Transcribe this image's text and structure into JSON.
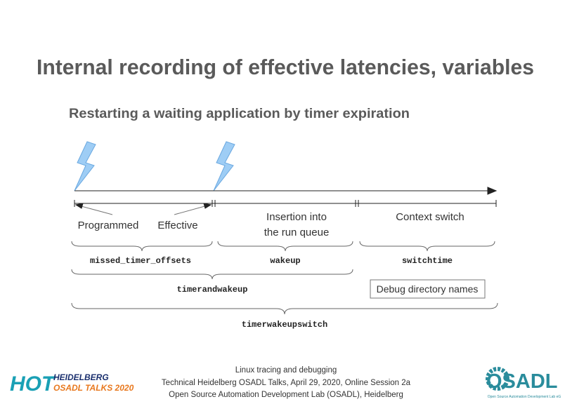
{
  "title": "Internal recording of effective latencies, variables",
  "subtitle": "Restarting a waiting application by timer expiration",
  "events": {
    "programmed": "Programmed",
    "effective": "Effective",
    "insertion": [
      "Insertion into",
      "the run queue"
    ],
    "context_switch": "Context switch"
  },
  "variables": {
    "missed_timer_offsets": "missed_timer_offsets",
    "wakeup": "wakeup",
    "switchtime": "switchtime",
    "timerandwakeup": "timerandwakeup",
    "timerwakeupswitch": "timerwakeupswitch"
  },
  "legend": "Debug directory names",
  "footer": [
    "Linux tracing and debugging",
    "Technical Heidelberg OSADL Talks, April 29, 2020, Online Session 2a",
    "Open Source Automation Development Lab (OSADL), Heidelberg"
  ],
  "logo_left": {
    "mark": "HOT",
    "line1": "HEIDELBERG",
    "line2": "OSADL TALKS 2020"
  },
  "logo_right": {
    "mark": "OSADL",
    "tagline": "Open Source Automation Development Lab eG"
  }
}
